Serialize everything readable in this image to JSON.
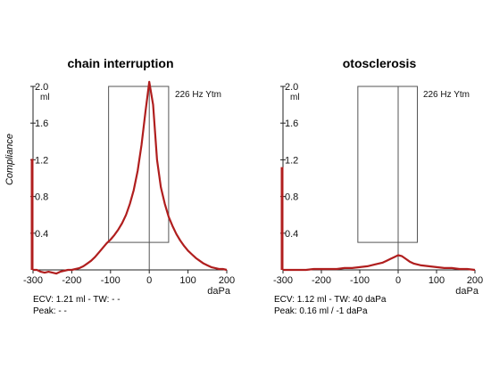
{
  "y_axis_label": "Compliance",
  "chart_data": [
    {
      "type": "line",
      "title": "chain interruption",
      "probe_label": "226 Hz Ytm",
      "xlabel": "daPa",
      "ylabel": "ml",
      "xlim": [
        -300,
        200
      ],
      "ylim": [
        0,
        2.0
      ],
      "x_ticks": [
        -300,
        -200,
        -100,
        0,
        100,
        200
      ],
      "y_ticks": [
        0.4,
        0.8,
        1.2,
        1.6,
        2.0
      ],
      "color": "#b01e1e",
      "series": [
        {
          "x": [
            -300,
            -290,
            -280,
            -270,
            -260,
            -250,
            -240,
            -230,
            -220,
            -210,
            -200,
            -190,
            -180,
            -170,
            -160,
            -150,
            -140,
            -130,
            -120,
            -110,
            -100,
            -90,
            -80,
            -70,
            -60,
            -50,
            -40,
            -30,
            -20,
            -10,
            0,
            10,
            20,
            30,
            40,
            50,
            60,
            70,
            80,
            90,
            100,
            110,
            120,
            130,
            140,
            150,
            160,
            170,
            180,
            190,
            200
          ],
          "y": [
            0.0,
            0.0,
            -0.02,
            -0.03,
            -0.02,
            -0.03,
            -0.04,
            -0.02,
            -0.01,
            0.0,
            0.0,
            0.01,
            0.02,
            0.04,
            0.07,
            0.1,
            0.14,
            0.19,
            0.24,
            0.29,
            0.33,
            0.38,
            0.44,
            0.51,
            0.6,
            0.72,
            0.87,
            1.08,
            1.36,
            1.72,
            2.05,
            1.8,
            1.2,
            0.9,
            0.72,
            0.58,
            0.48,
            0.39,
            0.32,
            0.26,
            0.21,
            0.17,
            0.13,
            0.1,
            0.07,
            0.05,
            0.03,
            0.02,
            0.01,
            0.01,
            0.0
          ]
        }
      ],
      "ecv_marker": {
        "x": -300,
        "y_from": 0.0,
        "y_to": 1.21
      },
      "window": {
        "x_from": -105,
        "x_to": 50,
        "y_from": 0.3,
        "y_to": 2.0
      },
      "footer": {
        "line1": "ECV: 1.21 ml - TW: - -",
        "line2": "Peak: - -"
      }
    },
    {
      "type": "line",
      "title": "otosclerosis",
      "probe_label": "226 Hz Ytm",
      "xlabel": "daPa",
      "ylabel": "ml",
      "xlim": [
        -300,
        200
      ],
      "ylim": [
        0,
        2.0
      ],
      "x_ticks": [
        -300,
        -200,
        -100,
        0,
        100,
        200
      ],
      "y_ticks": [
        0.4,
        0.8,
        1.2,
        1.6,
        2.0
      ],
      "color": "#b01e1e",
      "series": [
        {
          "x": [
            -300,
            -280,
            -260,
            -240,
            -220,
            -200,
            -180,
            -160,
            -140,
            -120,
            -100,
            -80,
            -60,
            -40,
            -30,
            -20,
            -10,
            0,
            10,
            20,
            30,
            40,
            60,
            80,
            100,
            120,
            140,
            160,
            180,
            200
          ],
          "y": [
            0.0,
            0.0,
            0.0,
            0.0,
            0.01,
            0.01,
            0.01,
            0.01,
            0.02,
            0.02,
            0.03,
            0.04,
            0.06,
            0.08,
            0.1,
            0.12,
            0.14,
            0.16,
            0.15,
            0.12,
            0.09,
            0.07,
            0.05,
            0.04,
            0.03,
            0.02,
            0.02,
            0.01,
            0.01,
            0.0
          ]
        }
      ],
      "ecv_marker": {
        "x": -300,
        "y_from": 0.0,
        "y_to": 1.12
      },
      "window": {
        "x_from": -105,
        "x_to": 50,
        "y_from": 0.3,
        "y_to": 2.0
      },
      "footer": {
        "line1": "ECV: 1.12 ml - TW: 40 daPa",
        "line2": "Peak: 0.16 ml / -1 daPa"
      }
    }
  ]
}
